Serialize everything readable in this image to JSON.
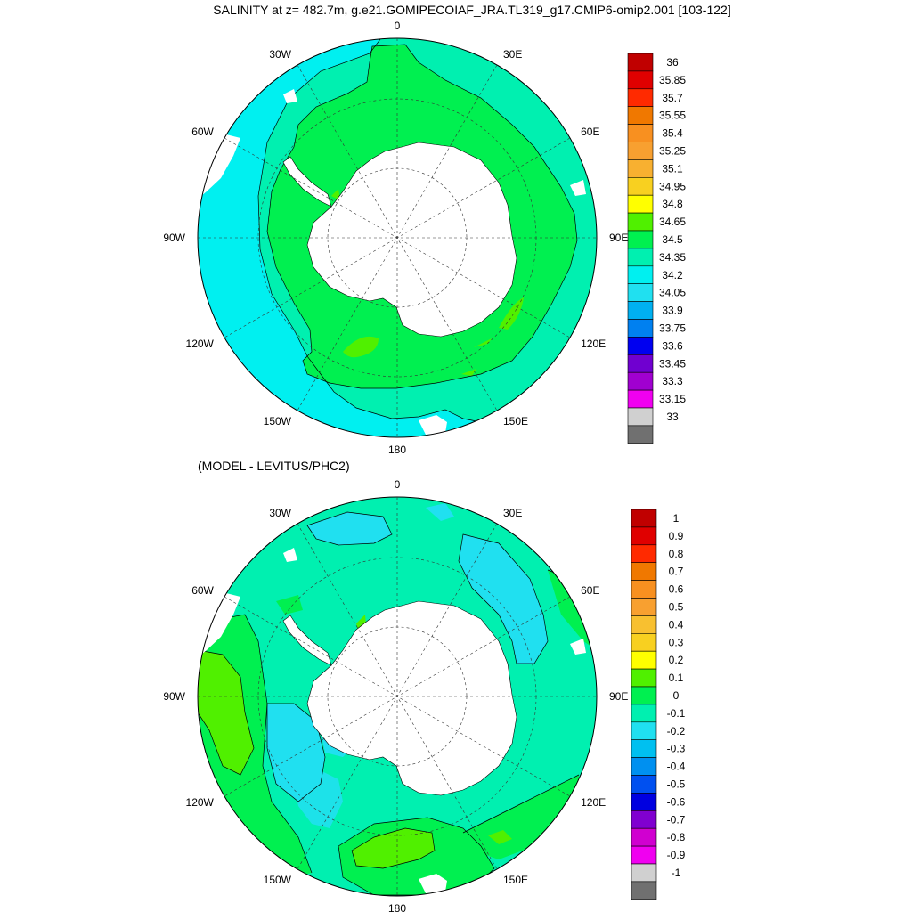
{
  "figure": {
    "title": "SALINITY at z= 482.7m, g.e21.GOMIPECOIAF_JRA.TL319_g17.CMIP6-omip2.001 [103-122]",
    "subtitle": "(MODEL - LEVITUS/PHC2)"
  },
  "maps": [
    {
      "id": "salinity",
      "lon_labels": [
        "0",
        "30E",
        "60E",
        "90E",
        "120E",
        "150E",
        "180",
        "150W",
        "120W",
        "90W",
        "60W",
        "30W"
      ],
      "colorbar": {
        "labels": [
          "36",
          "35.85",
          "35.7",
          "35.55",
          "35.4",
          "35.25",
          "35.1",
          "34.95",
          "34.8",
          "34.65",
          "34.5",
          "34.35",
          "34.2",
          "34.05",
          "33.9",
          "33.75",
          "33.6",
          "33.45",
          "33.3",
          "33.15",
          "33"
        ],
        "colors": [
          "#c00000",
          "#e00000",
          "#ff2a00",
          "#f07800",
          "#f89020",
          "#f8a030",
          "#f8b030",
          "#f8d020",
          "#ffff00",
          "#50f000",
          "#00f050",
          "#00f0b0",
          "#00f0f0",
          "#20e0f0",
          "#00b0f0",
          "#0080f0",
          "#0000f0",
          "#7000d0",
          "#a000d0",
          "#f000f0",
          "#d0d0d0",
          "#707070"
        ]
      }
    },
    {
      "id": "difference",
      "lon_labels": [
        "0",
        "30E",
        "60E",
        "90E",
        "120E",
        "150E",
        "180",
        "150W",
        "120W",
        "90W",
        "60W",
        "30W"
      ],
      "colorbar": {
        "labels": [
          "1",
          "0.9",
          "0.8",
          "0.7",
          "0.6",
          "0.5",
          "0.4",
          "0.3",
          "0.2",
          "0.1",
          "0",
          "-0.1",
          "-0.2",
          "-0.3",
          "-0.4",
          "-0.5",
          "-0.6",
          "-0.7",
          "-0.8",
          "-0.9",
          "-1"
        ],
        "colors": [
          "#c00000",
          "#e00000",
          "#ff2a00",
          "#f07800",
          "#f89020",
          "#f8a030",
          "#f8c030",
          "#f8d020",
          "#ffff00",
          "#50f000",
          "#00f050",
          "#00f0b0",
          "#20e0f0",
          "#00c0f0",
          "#0090f0",
          "#0050f0",
          "#0000e0",
          "#8000d0",
          "#d000d0",
          "#f000f0",
          "#d0d0d0",
          "#707070"
        ]
      }
    }
  ],
  "palette": {
    "land": "#ffffff",
    "s_green": "#00f050",
    "s_cyan": "#00f0b0",
    "s_lightcyan": "#00f0f0",
    "s_lime": "#50f000",
    "s_yellow": "#ffff00",
    "d_cyan": "#00f0b0",
    "d_lightblue": "#20e0f0",
    "d_green": "#00f050",
    "d_lime": "#50f000"
  }
}
